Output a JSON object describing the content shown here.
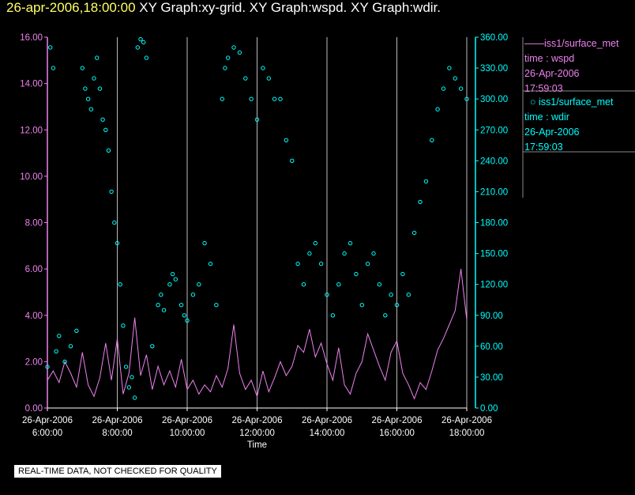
{
  "title": {
    "datetime": "26-apr-2006,18:00:00",
    "graphs": "XY Graph:xy-grid.  XY Graph:wspd.  XY Graph:wdir."
  },
  "colors": {
    "background": "#000000",
    "wspd": "#ee82ee",
    "wdir": "#00ffff",
    "title_date": "#ffff66",
    "axis_text": "#ffffff",
    "grid": "#ffffff"
  },
  "legend": [
    {
      "symbol": "line",
      "color": "#ee82ee",
      "lines": [
        "iss1/surface_met",
        "time : wspd",
        "26-Apr-2006",
        "17:59:03"
      ]
    },
    {
      "symbol": "circle",
      "color": "#00ffff",
      "lines": [
        "iss1/surface_met",
        "time : wdir",
        "26-Apr-2006",
        "17:59:03"
      ]
    }
  ],
  "disclaimer": "REAL-TIME DATA, NOT CHECKED FOR QUALITY",
  "chart_data": {
    "type": "line",
    "xlabel": "Time",
    "xlim": [
      "2006-04-26 06:00:00",
      "2006-04-26 18:00:00"
    ],
    "x_ticks": [
      {
        "date": "26-Apr-2006",
        "time": "6:00:00"
      },
      {
        "date": "26-Apr-2006",
        "time": "8:00:00"
      },
      {
        "date": "26-Apr-2006",
        "time": "10:00:00"
      },
      {
        "date": "26-Apr-2006",
        "time": "12:00:00"
      },
      {
        "date": "26-Apr-2006",
        "time": "14:00:00"
      },
      {
        "date": "26-Apr-2006",
        "time": "16:00:00"
      },
      {
        "date": "26-Apr-2006",
        "time": "18:00:00"
      }
    ],
    "ylim_left": [
      0,
      16
    ],
    "y_left_ticks": [
      "0.00",
      "2.00",
      "4.00",
      "6.00",
      "8.00",
      "10.00",
      "12.00",
      "14.00",
      "16.00"
    ],
    "ylim_right": [
      0,
      360
    ],
    "y_right_ticks": [
      "0.00",
      "30.00",
      "60.00",
      "90.00",
      "120.00",
      "150.00",
      "180.00",
      "210.00",
      "240.00",
      "270.00",
      "300.00",
      "330.00",
      "360.00"
    ],
    "grid": "vertical at each time tick",
    "series": [
      {
        "name": "iss1/surface_met time : wspd",
        "axis": "left",
        "style": "line",
        "color": "#ee82ee",
        "points": [
          [
            "06:00",
            1.2
          ],
          [
            "06:10",
            1.6
          ],
          [
            "06:20",
            1.1
          ],
          [
            "06:30",
            2.0
          ],
          [
            "06:40",
            1.5
          ],
          [
            "06:50",
            0.9
          ],
          [
            "07:00",
            2.4
          ],
          [
            "07:10",
            1.0
          ],
          [
            "07:20",
            0.5
          ],
          [
            "07:30",
            1.3
          ],
          [
            "07:40",
            2.8
          ],
          [
            "07:50",
            1.2
          ],
          [
            "08:00",
            3.0
          ],
          [
            "08:10",
            0.6
          ],
          [
            "08:20",
            1.5
          ],
          [
            "08:30",
            3.9
          ],
          [
            "08:40",
            1.4
          ],
          [
            "08:50",
            2.3
          ],
          [
            "09:00",
            0.8
          ],
          [
            "09:10",
            1.8
          ],
          [
            "09:20",
            1.0
          ],
          [
            "09:30",
            1.6
          ],
          [
            "09:40",
            0.9
          ],
          [
            "09:50",
            2.1
          ],
          [
            "10:00",
            0.8
          ],
          [
            "10:10",
            1.2
          ],
          [
            "10:20",
            0.6
          ],
          [
            "10:30",
            1.0
          ],
          [
            "10:40",
            0.7
          ],
          [
            "10:50",
            1.4
          ],
          [
            "11:00",
            0.9
          ],
          [
            "11:10",
            1.7
          ],
          [
            "11:20",
            3.6
          ],
          [
            "11:30",
            1.5
          ],
          [
            "11:40",
            0.8
          ],
          [
            "11:50",
            1.2
          ],
          [
            "12:00",
            0.5
          ],
          [
            "12:10",
            1.6
          ],
          [
            "12:20",
            0.7
          ],
          [
            "12:30",
            1.3
          ],
          [
            "12:40",
            2.0
          ],
          [
            "12:50",
            1.4
          ],
          [
            "13:00",
            1.8
          ],
          [
            "13:10",
            2.7
          ],
          [
            "13:20",
            2.4
          ],
          [
            "13:30",
            3.4
          ],
          [
            "13:40",
            2.2
          ],
          [
            "13:50",
            2.8
          ],
          [
            "14:00",
            1.9
          ],
          [
            "14:10",
            1.2
          ],
          [
            "14:20",
            2.6
          ],
          [
            "14:30",
            1.0
          ],
          [
            "14:40",
            0.6
          ],
          [
            "14:50",
            1.5
          ],
          [
            "15:00",
            2.0
          ],
          [
            "15:10",
            3.2
          ],
          [
            "15:20",
            2.5
          ],
          [
            "15:30",
            1.8
          ],
          [
            "15:40",
            1.2
          ],
          [
            "15:50",
            2.4
          ],
          [
            "16:00",
            2.9
          ],
          [
            "16:10",
            1.5
          ],
          [
            "16:20",
            1.0
          ],
          [
            "16:30",
            0.4
          ],
          [
            "16:40",
            1.1
          ],
          [
            "16:50",
            0.8
          ],
          [
            "17:00",
            1.6
          ],
          [
            "17:10",
            2.5
          ],
          [
            "17:20",
            3.0
          ],
          [
            "17:30",
            3.6
          ],
          [
            "17:40",
            4.2
          ],
          [
            "17:50",
            6.0
          ],
          [
            "18:00",
            3.8
          ]
        ]
      },
      {
        "name": "iss1/surface_met time : wdir",
        "axis": "right",
        "style": "circles",
        "color": "#00ffff",
        "points": [
          [
            "06:00",
            40
          ],
          [
            "06:05",
            350
          ],
          [
            "06:10",
            330
          ],
          [
            "06:15",
            55
          ],
          [
            "06:20",
            70
          ],
          [
            "06:30",
            45
          ],
          [
            "06:40",
            60
          ],
          [
            "06:50",
            75
          ],
          [
            "07:00",
            330
          ],
          [
            "07:05",
            310
          ],
          [
            "07:10",
            300
          ],
          [
            "07:15",
            290
          ],
          [
            "07:20",
            320
          ],
          [
            "07:25",
            340
          ],
          [
            "07:30",
            310
          ],
          [
            "07:35",
            280
          ],
          [
            "07:40",
            270
          ],
          [
            "07:45",
            250
          ],
          [
            "07:50",
            210
          ],
          [
            "07:55",
            180
          ],
          [
            "08:00",
            160
          ],
          [
            "08:05",
            120
          ],
          [
            "08:10",
            80
          ],
          [
            "08:15",
            40
          ],
          [
            "08:20",
            20
          ],
          [
            "08:25",
            30
          ],
          [
            "08:30",
            10
          ],
          [
            "08:35",
            350
          ],
          [
            "08:40",
            358
          ],
          [
            "08:45",
            355
          ],
          [
            "08:50",
            340
          ],
          [
            "09:00",
            60
          ],
          [
            "09:10",
            100
          ],
          [
            "09:15",
            110
          ],
          [
            "09:20",
            95
          ],
          [
            "09:30",
            120
          ],
          [
            "09:35",
            130
          ],
          [
            "09:40",
            125
          ],
          [
            "09:50",
            100
          ],
          [
            "09:55",
            90
          ],
          [
            "10:00",
            85
          ],
          [
            "10:10",
            110
          ],
          [
            "10:20",
            120
          ],
          [
            "10:30",
            160
          ],
          [
            "10:40",
            140
          ],
          [
            "10:50",
            100
          ],
          [
            "11:00",
            300
          ],
          [
            "11:05",
            330
          ],
          [
            "11:10",
            340
          ],
          [
            "11:20",
            350
          ],
          [
            "11:30",
            345
          ],
          [
            "11:40",
            320
          ],
          [
            "11:50",
            300
          ],
          [
            "12:00",
            280
          ],
          [
            "12:10",
            330
          ],
          [
            "12:20",
            320
          ],
          [
            "12:30",
            300
          ],
          [
            "12:40",
            300
          ],
          [
            "12:50",
            260
          ],
          [
            "13:00",
            240
          ],
          [
            "13:10",
            140
          ],
          [
            "13:20",
            120
          ],
          [
            "13:30",
            150
          ],
          [
            "13:40",
            160
          ],
          [
            "13:50",
            140
          ],
          [
            "14:00",
            110
          ],
          [
            "14:10",
            90
          ],
          [
            "14:20",
            120
          ],
          [
            "14:30",
            150
          ],
          [
            "14:40",
            160
          ],
          [
            "14:50",
            130
          ],
          [
            "15:00",
            100
          ],
          [
            "15:10",
            140
          ],
          [
            "15:20",
            150
          ],
          [
            "15:30",
            120
          ],
          [
            "15:40",
            90
          ],
          [
            "15:50",
            110
          ],
          [
            "16:00",
            100
          ],
          [
            "16:10",
            130
          ],
          [
            "16:20",
            110
          ],
          [
            "16:30",
            170
          ],
          [
            "16:40",
            200
          ],
          [
            "16:50",
            220
          ],
          [
            "17:00",
            260
          ],
          [
            "17:10",
            290
          ],
          [
            "17:20",
            310
          ],
          [
            "17:30",
            330
          ],
          [
            "17:40",
            320
          ],
          [
            "17:50",
            310
          ],
          [
            "18:00",
            300
          ]
        ]
      }
    ]
  }
}
